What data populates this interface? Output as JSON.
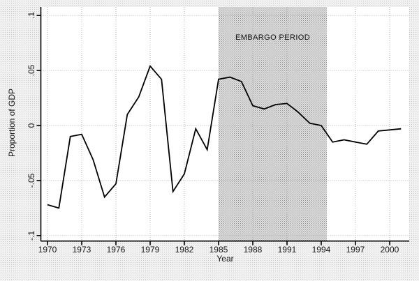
{
  "chart_data": {
    "type": "line",
    "title": "",
    "xlabel": "Year",
    "ylabel": "Proportion of GDP",
    "x": [
      1970,
      1971,
      1972,
      1973,
      1974,
      1975,
      1976,
      1977,
      1978,
      1979,
      1980,
      1981,
      1982,
      1983,
      1984,
      1985,
      1986,
      1987,
      1988,
      1989,
      1990,
      1991,
      1992,
      1993,
      1994,
      1995,
      1996,
      1997,
      1998,
      1999,
      2000,
      2001
    ],
    "series": [
      {
        "name": "Proportion of GDP",
        "values": [
          -0.072,
          -0.075,
          -0.01,
          -0.008,
          -0.031,
          -0.065,
          -0.053,
          0.01,
          0.026,
          0.054,
          0.042,
          -0.06,
          -0.044,
          -0.003,
          -0.022,
          0.042,
          0.044,
          0.04,
          0.018,
          0.015,
          0.019,
          0.02,
          0.012,
          0.002,
          0.0,
          -0.015,
          -0.013,
          -0.015,
          -0.017,
          -0.005,
          -0.004,
          -0.003
        ]
      }
    ],
    "xticks": [
      1970,
      1973,
      1976,
      1979,
      1982,
      1985,
      1988,
      1991,
      1994,
      1997,
      2000
    ],
    "yticks": [
      0.1,
      0.05,
      0,
      -0.05,
      -0.1
    ],
    "ytick_labels": [
      ".1",
      ".05",
      "0",
      "-.05",
      "-.1"
    ],
    "xlim": [
      1969.4,
      2001.7
    ],
    "ylim": [
      -0.105,
      0.107
    ],
    "grid": true,
    "legend": false,
    "shaded_region": {
      "label": "EMBARGO PERIOD",
      "x_start": 1985,
      "x_end": 1994.5
    }
  },
  "colors": {
    "line": "#000000",
    "axis": "#000000",
    "grid": "#b3b3b3",
    "plot_bg": "#ffffff",
    "embargo_fill": "#cccccc",
    "canvas_bg": "#e7e7e7",
    "text": "#141414"
  }
}
